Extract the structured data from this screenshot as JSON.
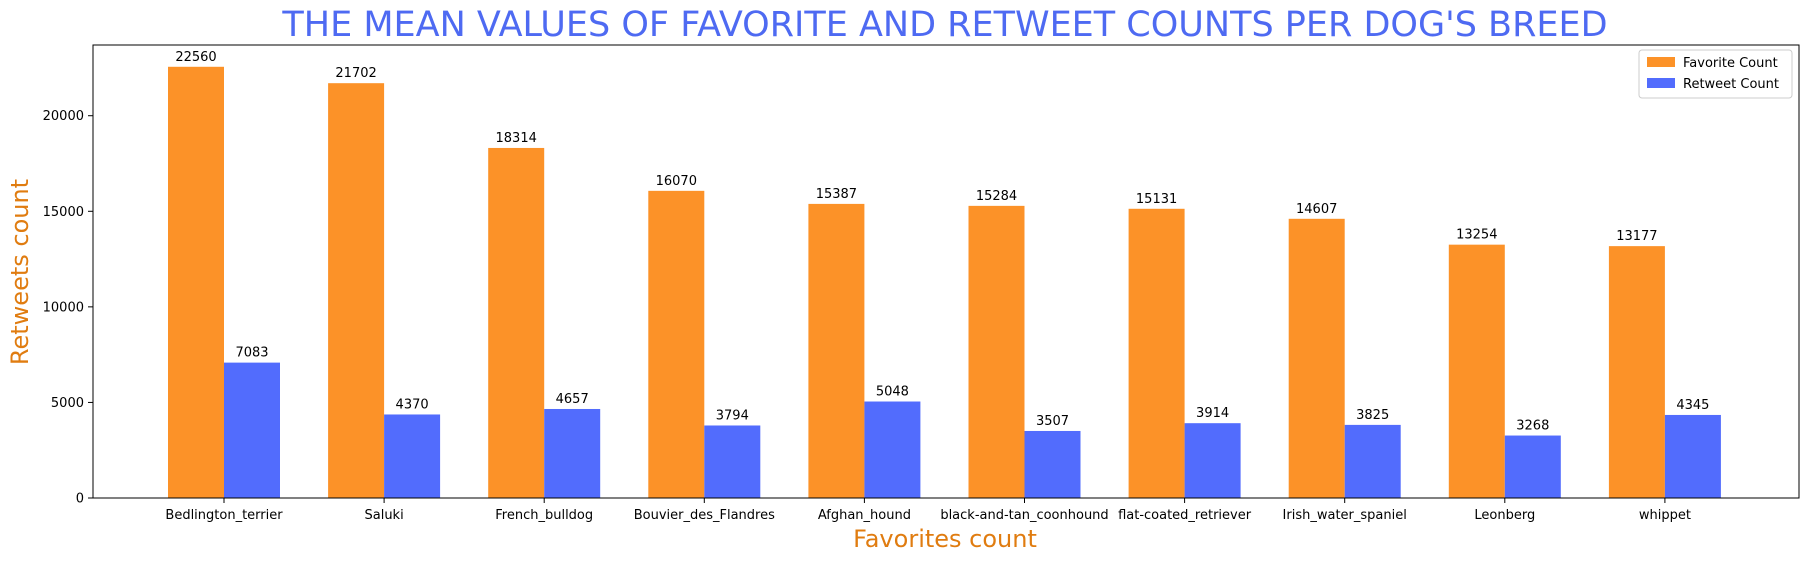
{
  "chart_data": {
    "type": "bar",
    "title": "THE MEAN VALUES OF FAVORITE AND RETWEET COUNTS PER DOG'S BREED",
    "xlabel": "Favorites count",
    "ylabel": "Retweets count",
    "categories": [
      "Bedlington_terrier",
      "Saluki",
      "French_bulldog",
      "Bouvier_des_Flandres",
      "Afghan_hound",
      "black-and-tan_coonhound",
      "flat-coated_retriever",
      "Irish_water_spaniel",
      "Leonberg",
      "whippet"
    ],
    "series": [
      {
        "name": "Favorite Count",
        "color": "#fc9228",
        "values": [
          22560,
          21702,
          18314,
          16070,
          15387,
          15284,
          15131,
          14607,
          13254,
          13177
        ]
      },
      {
        "name": "Retweet Count",
        "color": "#526cfd",
        "values": [
          7083,
          4370,
          4657,
          3794,
          5048,
          3507,
          3914,
          3825,
          3268,
          4345
        ]
      }
    ],
    "yticks": [
      0,
      5000,
      10000,
      15000,
      20000
    ],
    "ylim": [
      0,
      23700
    ],
    "grid": false,
    "legend_position": "top-right",
    "title_color": "#4e6af2",
    "axis_label_color": "#e07c10"
  }
}
